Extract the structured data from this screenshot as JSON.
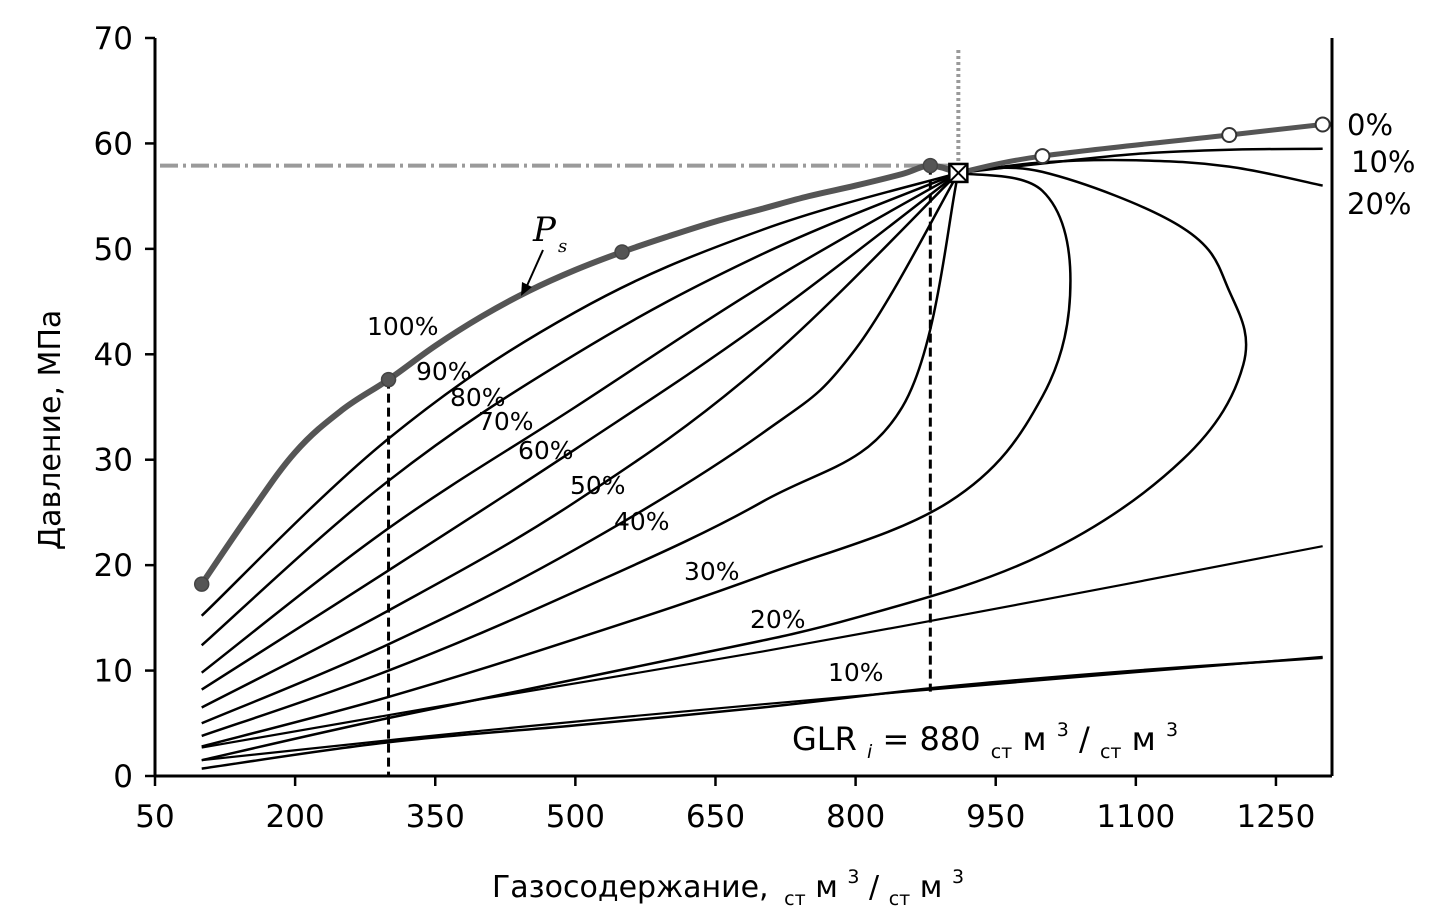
{
  "chart_data": {
    "type": "line",
    "ylabel": "Давление, МПа",
    "xlabel": {
      "main": "Газосодержание,",
      "sub1": "ст",
      "unit1": "м",
      "sup1": "3",
      "slash": "/",
      "sub2": "ст",
      "unit2": "м",
      "sup2": "3"
    },
    "xlim": [
      50,
      1310
    ],
    "ylim": [
      0,
      70
    ],
    "x_ticks": [
      "50",
      "200",
      "350",
      "500",
      "650",
      "800",
      "950",
      "1100",
      "1250"
    ],
    "y_ticks": [
      "0",
      "10",
      "20",
      "30",
      "40",
      "50",
      "60",
      "70"
    ],
    "grid": false,
    "annotation": {
      "main": "GLR",
      "sub_i": "i",
      "eq": " = 880 ",
      "sub1": "ст",
      "unit1": "м",
      "sup1": "3",
      "slash": "/",
      "sub2": "ст",
      "unit2": "м",
      "sup2": "3"
    },
    "ps_label": {
      "main": "P",
      "sub": "s"
    },
    "reference_lines": {
      "horizontal_pressure": 57.9,
      "vertical_glr": 910,
      "dashed_x": [
        300,
        880
      ]
    },
    "critical_point": {
      "x": 910,
      "y": 57.2
    },
    "saturation_curve": {
      "name": "Ps",
      "x": [
        100,
        150,
        200,
        250,
        300,
        350,
        400,
        450,
        500,
        550,
        600,
        650,
        700,
        750,
        800,
        850,
        880,
        910
      ],
      "y": [
        18.2,
        24.7,
        30.7,
        34.7,
        37.6,
        40.8,
        43.6,
        46.0,
        48.0,
        49.7,
        51.2,
        52.6,
        53.8,
        55.0,
        56.0,
        57.1,
        57.9,
        57.2
      ],
      "markers_filled": [
        [
          100,
          18.2
        ],
        [
          300,
          37.6
        ],
        [
          550,
          49.7
        ],
        [
          880,
          57.9
        ]
      ]
    },
    "dew_curve": {
      "x": [
        910,
        1000,
        1200,
        1300
      ],
      "y": [
        57.2,
        58.8,
        60.8,
        61.8
      ],
      "markers_open": [
        [
          1000,
          58.8
        ],
        [
          1200,
          60.8
        ],
        [
          1300,
          61.8
        ]
      ]
    },
    "series": [
      {
        "name": "100%",
        "x": [
          100,
          300,
          500,
          700,
          910
        ],
        "y": [
          15.2,
          32.0,
          44.0,
          51.8,
          57.2
        ]
      },
      {
        "name": "90%",
        "x": [
          100,
          300,
          500,
          700,
          910
        ],
        "y": [
          12.4,
          28.0,
          40.0,
          49.5,
          57.2
        ]
      },
      {
        "name": "80%",
        "x": [
          100,
          300,
          500,
          700,
          910
        ],
        "y": [
          9.8,
          23.5,
          35.0,
          46.5,
          57.2
        ]
      },
      {
        "name": "70%",
        "x": [
          100,
          300,
          500,
          700,
          910
        ],
        "y": [
          8.2,
          19.5,
          31.0,
          43.0,
          57.2
        ]
      },
      {
        "name": "60%",
        "x": [
          100,
          300,
          500,
          700,
          910
        ],
        "y": [
          6.5,
          15.7,
          26.0,
          39.0,
          57.2
        ]
      },
      {
        "name": "50%",
        "x": [
          100,
          300,
          500,
          700,
          800,
          910
        ],
        "y": [
          5.0,
          12.5,
          21.5,
          32.5,
          40.5,
          57.2
        ]
      },
      {
        "name": "40%",
        "x": [
          100,
          300,
          500,
          700,
          850,
          910
        ],
        "y": [
          3.8,
          10.0,
          17.5,
          26.0,
          35.0,
          57.2
        ]
      },
      {
        "name": "30%",
        "x": [
          100,
          300,
          500,
          700,
          900,
          1000,
          1030,
          1000,
          910
        ],
        "y": [
          2.8,
          7.5,
          13.0,
          19.0,
          26.0,
          36.0,
          47.0,
          55.5,
          57.2
        ]
      },
      {
        "name": "20%",
        "x": [
          100,
          300,
          600,
          800,
          1000,
          1150,
          1215,
          1200,
          1150,
          1000,
          910
        ],
        "y": [
          1.5,
          5.5,
          11.0,
          15.0,
          21.0,
          30.0,
          39.0,
          46.0,
          52.0,
          57.3,
          57.2
        ]
      },
      {
        "name": "10%",
        "x": [
          100,
          300,
          500,
          700,
          900,
          1100,
          1300
        ],
        "y": [
          0.7,
          3.2,
          4.8,
          6.5,
          8.5,
          10.0,
          11.2
        ]
      }
    ],
    "upper_branches": [
      {
        "name": "10%",
        "x": [
          910,
          1000,
          1100,
          1200,
          1300
        ],
        "y": [
          57.2,
          58.1,
          59.0,
          59.4,
          59.5
        ]
      },
      {
        "name": "20%",
        "x": [
          910,
          1000,
          1100,
          1200,
          1300
        ],
        "y": [
          57.2,
          58.2,
          58.4,
          57.8,
          56.0
        ]
      }
    ],
    "lower_region_lines": [
      {
        "name": "30%",
        "x": [
          100,
          400,
          700,
          1000,
          1300
        ],
        "y": [
          2.7,
          7.3,
          11.8,
          16.7,
          21.8
        ]
      },
      {
        "name": "20%",
        "x": [
          100,
          400,
          700,
          1000,
          1300
        ],
        "y": [
          1.5,
          4.3,
          6.8,
          9.1,
          11.3
        ]
      }
    ],
    "curve_labels": [
      "100%",
      "90%",
      "80%",
      "70%",
      "60%",
      "50%",
      "40%",
      "30%",
      "20%",
      "10%"
    ],
    "right_labels": [
      "0%",
      "10%",
      "20%"
    ]
  }
}
